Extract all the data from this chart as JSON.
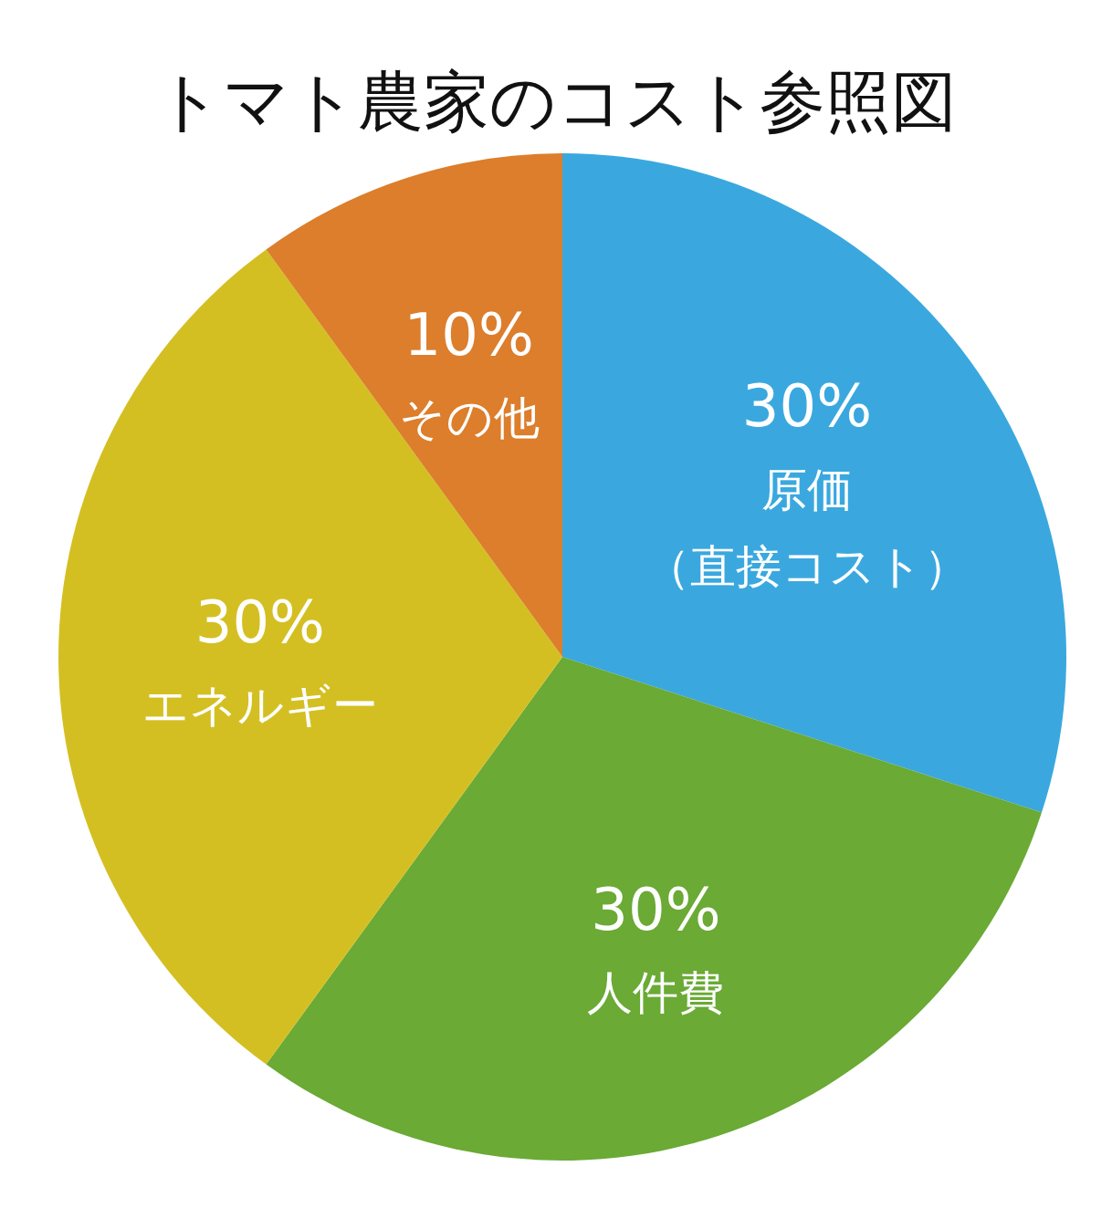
{
  "chart_data": {
    "type": "pie",
    "title": "トマト農家のコスト参照図",
    "categories": [
      "原価（直接コスト）",
      "人件費",
      "エネルギー",
      "その他"
    ],
    "values": [
      30,
      30,
      30,
      10
    ],
    "value_labels": [
      "30%",
      "30%",
      "30%",
      "10%"
    ],
    "colors": [
      "#3aa8df",
      "#6aaa35",
      "#d4bf22",
      "#dc7e2c"
    ],
    "legend": false
  }
}
